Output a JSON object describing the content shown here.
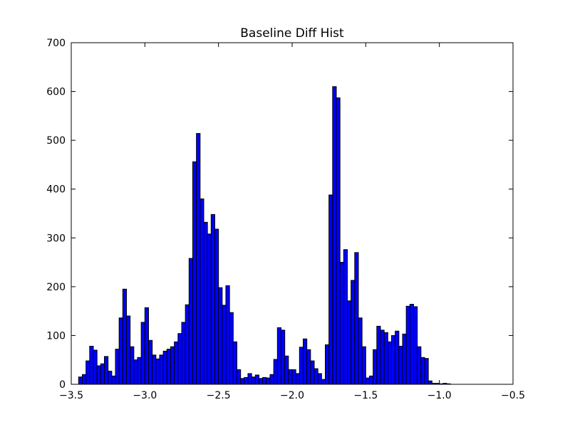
{
  "chart_data": {
    "type": "bar",
    "title": "Baseline Diff Hist",
    "xlabel": "",
    "ylabel": "",
    "xlim": [
      -3.5,
      -0.5
    ],
    "ylim": [
      0,
      700
    ],
    "xticks": [
      -3.5,
      -3.0,
      -2.5,
      -2.0,
      -1.5,
      -1.0,
      -0.5
    ],
    "xtick_labels": [
      "−3.5",
      "−3.0",
      "−2.5",
      "−2.0",
      "−1.5",
      "−1.0",
      "−0.5"
    ],
    "yticks": [
      0,
      100,
      200,
      300,
      400,
      500,
      600,
      700
    ],
    "ytick_labels": [
      "0",
      "100",
      "200",
      "300",
      "400",
      "500",
      "600",
      "700"
    ],
    "grid": false,
    "bar_color": "#0000ff",
    "edge_color": "#000000",
    "bin_start": -3.45,
    "bin_width": 0.025,
    "counts": [
      15,
      20,
      48,
      78,
      70,
      38,
      42,
      57,
      27,
      17,
      72,
      136,
      195,
      140,
      77,
      50,
      55,
      127,
      157,
      90,
      60,
      52,
      60,
      68,
      72,
      77,
      87,
      104,
      127,
      163,
      258,
      456,
      514,
      380,
      332,
      308,
      348,
      318,
      198,
      162,
      202,
      147,
      87,
      30,
      12,
      14,
      22,
      15,
      19,
      12,
      14,
      13,
      20,
      51,
      116,
      111,
      58,
      30,
      30,
      22,
      76,
      93,
      71,
      48,
      32,
      22,
      10,
      81,
      388,
      610,
      587,
      250,
      276,
      171,
      213,
      270,
      136,
      77,
      13,
      17,
      71,
      119,
      111,
      106,
      87,
      100,
      109,
      78,
      103,
      160,
      164,
      159,
      77,
      55,
      53,
      7,
      2,
      2,
      1,
      2,
      1
    ]
  }
}
